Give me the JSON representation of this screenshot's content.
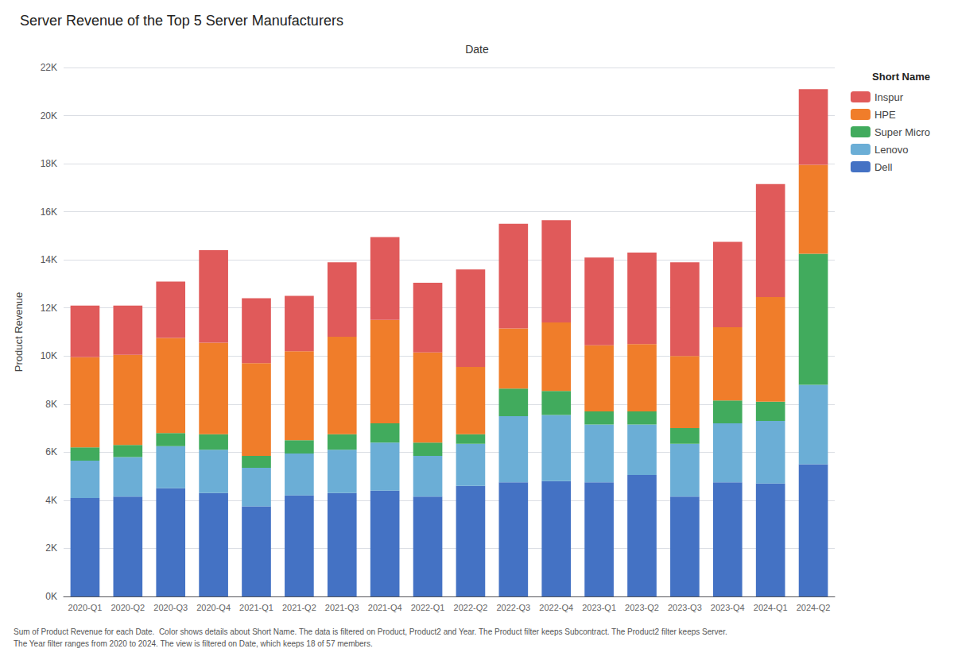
{
  "chart_data": {
    "type": "bar",
    "stacked": true,
    "title": "Server Revenue of the Top 5 Server Manufacturers",
    "xlabel": "Date",
    "ylabel": "Product Revenue",
    "legend_title": "Short Name",
    "annotations": [
      "Sum of Product Revenue for each Date.  Color shows details about Short Name. The data is filtered on Product, Product2 and Year. The Product filter keeps Subcontract. The Product2 filter keeps Server.\nThe Year filter ranges from 2020 to 2024. The view is filtered on Date, which keeps 18 of 57 members."
    ],
    "categories": [
      "2020-Q1",
      "2020-Q2",
      "2020-Q3",
      "2020-Q4",
      "2021-Q1",
      "2021-Q2",
      "2021-Q3",
      "2021-Q4",
      "2022-Q1",
      "2022-Q2",
      "2022-Q3",
      "2022-Q4",
      "2023-Q1",
      "2023-Q2",
      "2023-Q3",
      "2023-Q4",
      "2024-Q1",
      "2024-Q2"
    ],
    "series": [
      {
        "name": "Dell",
        "color": "#4472C4",
        "values": [
          4100,
          4150,
          4500,
          4300,
          3750,
          4200,
          4300,
          4400,
          4150,
          4600,
          4750,
          4800,
          4750,
          5050,
          4150,
          4750,
          4700,
          5500
        ]
      },
      {
        "name": "Lenovo",
        "color": "#6BAED6",
        "values": [
          1550,
          1650,
          1750,
          1800,
          1600,
          1750,
          1800,
          2000,
          1700,
          1750,
          2750,
          2750,
          2400,
          2100,
          2200,
          2450,
          2600,
          3300
        ]
      },
      {
        "name": "Super Micro",
        "color": "#41AB5D",
        "values": [
          550,
          500,
          550,
          650,
          500,
          550,
          650,
          800,
          550,
          400,
          1150,
          1000,
          550,
          550,
          650,
          950,
          800,
          5450
        ]
      },
      {
        "name": "HPE",
        "color": "#F07D2A",
        "values": [
          3750,
          3750,
          3950,
          3800,
          3850,
          3700,
          4050,
          4300,
          3750,
          2800,
          2500,
          2850,
          2750,
          2800,
          3000,
          3050,
          4350,
          3700
        ]
      },
      {
        "name": "Inspur",
        "color": "#E05A5A",
        "values": [
          2150,
          2050,
          2350,
          3850,
          2700,
          2300,
          3100,
          3450,
          2900,
          4050,
          4350,
          4250,
          3650,
          3800,
          3900,
          3550,
          4700,
          3150
        ]
      }
    ],
    "ylim": [
      0,
      22000
    ],
    "yticks": [
      {
        "value": 0,
        "label": "0K"
      },
      {
        "value": 2000,
        "label": "2K"
      },
      {
        "value": 4000,
        "label": "4K"
      },
      {
        "value": 6000,
        "label": "6K"
      },
      {
        "value": 8000,
        "label": "8K"
      },
      {
        "value": 10000,
        "label": "10K"
      },
      {
        "value": 12000,
        "label": "12K"
      },
      {
        "value": 14000,
        "label": "14K"
      },
      {
        "value": 16000,
        "label": "16K"
      },
      {
        "value": 18000,
        "label": "18K"
      },
      {
        "value": 20000,
        "label": "20K"
      },
      {
        "value": 22000,
        "label": "22K"
      }
    ],
    "grid": true,
    "legend": "right"
  }
}
